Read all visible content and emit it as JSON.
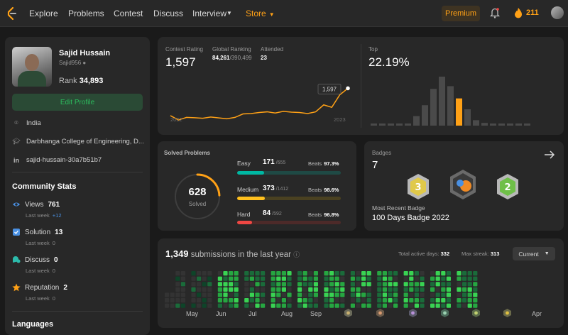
{
  "nav": {
    "items": [
      {
        "label": "Explore",
        "x": 41
      },
      {
        "label": "Problems",
        "x": 96
      },
      {
        "label": "Contest",
        "x": 160
      },
      {
        "label": "Discuss",
        "x": 216
      },
      {
        "label": "Interview",
        "x": 271
      }
    ],
    "store": "Store",
    "premium": "Premium",
    "streak": "211"
  },
  "profile": {
    "name": "Sajid Hussain",
    "handle": "Sajid956",
    "rank_label": "Rank",
    "rank": "34,893",
    "edit": "Edit Profile",
    "location": "India",
    "college": "Darbhanga College of Engineering, D...",
    "linkedin": "sajid-hussain-30a7b51b7"
  },
  "community": {
    "title": "Community Stats",
    "views": {
      "label": "Views",
      "value": "761",
      "sub": "Last week",
      "delta": "+12"
    },
    "solution": {
      "label": "Solution",
      "value": "13",
      "sub": "Last week",
      "delta": "0"
    },
    "discuss": {
      "label": "Discuss",
      "value": "0",
      "sub": "Last week",
      "delta": "0"
    },
    "reputation": {
      "label": "Reputation",
      "value": "2",
      "sub": "Last week",
      "delta": "0"
    }
  },
  "languages_title": "Languages",
  "contest": {
    "rating_label": "Contest Rating",
    "rating": "1,597",
    "global_label": "Global Ranking",
    "global_rank": "84,261",
    "global_total": "/390,499",
    "attended_label": "Attended",
    "attended": "23",
    "year_start": "2022",
    "year_end": "2023",
    "tooltip": "1,597",
    "top_label": "Top",
    "top_value": "22.19%",
    "rating_series": [
      1440,
      1415,
      1430,
      1428,
      1425,
      1432,
      1427,
      1422,
      1430,
      1450,
      1452,
      1458,
      1462,
      1455,
      1465,
      1460,
      1458,
      1452,
      1462,
      1502,
      1488,
      1560,
      1597
    ],
    "histogram": [
      2,
      2,
      2,
      2,
      3,
      14,
      30,
      54,
      72,
      58,
      40,
      24,
      8,
      4,
      2,
      2,
      2,
      2,
      2
    ],
    "histogram_highlight": 10,
    "colors": {
      "line": "#ffa116",
      "bar": "#4a4a4a",
      "bar_highlight": "#ffa116"
    }
  },
  "solved": {
    "title": "Solved Problems",
    "total": "628",
    "label": "Solved",
    "easy": {
      "name": "Easy",
      "solved": "171",
      "total": "/655",
      "beats_label": "Beats",
      "beats": "97.3%",
      "fraction": 0.261
    },
    "medium": {
      "name": "Medium",
      "solved": "373",
      "total": "/1412",
      "beats_label": "Beats",
      "beats": "98.6%",
      "fraction": 0.264
    },
    "hard": {
      "name": "Hard",
      "solved": "84",
      "total": "/592",
      "beats_label": "Beats",
      "beats": "96.8%",
      "fraction": 0.142
    },
    "ring_fraction": 0.24,
    "colors": {
      "easy": "#00b8a3",
      "medium": "#ffc01e",
      "hard": "#ef4743",
      "ring": "#ffa116"
    }
  },
  "badges": {
    "title": "Badges",
    "count": "7",
    "recent_label": "Most Recent Badge",
    "recent": "100 Days Badge 2022"
  },
  "submissions": {
    "count": "1,349",
    "text": "submissions in the last year",
    "active_label": "Total active days:",
    "active": "332",
    "streak_label": "Max streak:",
    "streak": "313",
    "current": "Current",
    "months": [
      "May",
      "Jun",
      "Jul",
      "Aug",
      "Sep",
      "Apr"
    ]
  }
}
